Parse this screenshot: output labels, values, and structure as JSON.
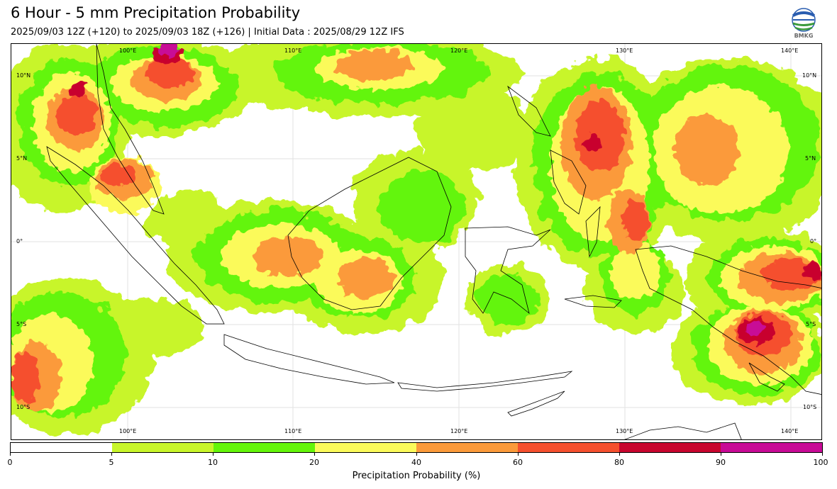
{
  "header": {
    "title": "6 Hour - 5 mm Precipitation Probability",
    "subtitle": "2025/09/03 12Z (+120) to 2025/09/03 18Z (+126) | Initial Data : 2025/08/29 12Z IFS",
    "logo_text": "BMKG"
  },
  "map": {
    "lon_top_labels": [
      "100°E",
      "110°E",
      "120°E",
      "130°E",
      "140°E"
    ],
    "lon_bottom_labels": [
      "100°E",
      "110°E",
      "120°E",
      "130°E",
      "140°E"
    ],
    "lat_left_labels": [
      "10°N",
      "5°N",
      "0°",
      "5°S",
      "10°S"
    ],
    "lat_right_labels": [
      "10°N",
      "5°N",
      "0°",
      "5°S",
      "10°S"
    ]
  },
  "colorbar": {
    "ticks": [
      "0",
      "5",
      "10",
      "20",
      "40",
      "60",
      "80",
      "90",
      "100"
    ],
    "colors": [
      "#ffffff",
      "#c8f52a",
      "#64f50a",
      "#fbfa5a",
      "#fb9a3a",
      "#f5502e",
      "#c8062e",
      "#c80a96"
    ],
    "label": "Precipitation Probability (%)"
  }
}
